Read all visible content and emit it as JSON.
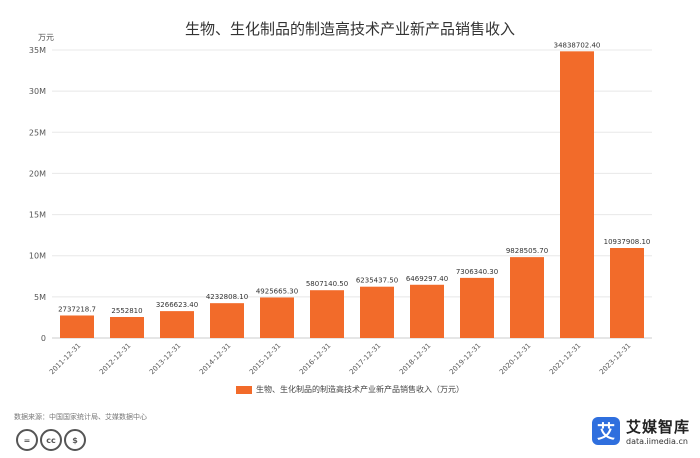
{
  "title": "生物、生化制品的制造高技术产业新产品销售收入",
  "legend_label": "生物、生化制品的制造高技术产业新产品销售收入（万元）",
  "source": "数据来源：中国国家统计局、艾媒数据中心",
  "license_icons": [
    "=",
    "cc",
    "$"
  ],
  "brand": {
    "name": "艾媒智库",
    "url": "data.iimedia.cn",
    "mark": "艾"
  },
  "colors": {
    "bar": "#f26b2a",
    "grid": "#e8e8e8",
    "axis_text": "#555555"
  },
  "chart_data": {
    "type": "bar",
    "title": "生物、生化制品的制造高技术产业新产品销售收入",
    "ylabel": "万元",
    "ylim": [
      0,
      35000000
    ],
    "yticks": [
      0,
      5000000,
      10000000,
      15000000,
      20000000,
      25000000,
      30000000,
      35000000
    ],
    "ytick_labels": [
      "0",
      "5M",
      "10M",
      "15M",
      "20M",
      "25M",
      "30M",
      "35M"
    ],
    "grid": true,
    "legend_position": "bottom",
    "categories": [
      "2011-12-31",
      "2012-12-31",
      "2013-12-31",
      "2014-12-31",
      "2015-12-31",
      "2016-12-31",
      "2017-12-31",
      "2018-12-31",
      "2019-12-31",
      "2020-12-31",
      "2021-12-31",
      "2023-12-31"
    ],
    "values": [
      2737218.7,
      2552810,
      3266623.4,
      4232808.1,
      4925665.3,
      5807140.5,
      6235437.5,
      6469297.4,
      7306340.3,
      9828505.7,
      34838702.4,
      10937908.1
    ],
    "value_labels": [
      "2737218.7",
      "2552810",
      "3266623.40",
      "4232808.10",
      "4925665.30",
      "5807140.50",
      "6235437.50",
      "6469297.40",
      "7306340.30",
      "9828505.70",
      "34838702.40",
      "10937908.10"
    ]
  }
}
